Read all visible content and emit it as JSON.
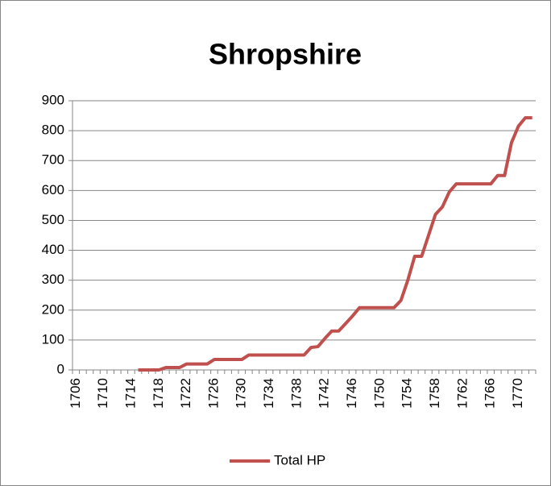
{
  "chart_data": {
    "type": "line",
    "title": "Shropshire",
    "categories": [
      "1706",
      null,
      null,
      null,
      "1710",
      null,
      null,
      null,
      "1714",
      null,
      null,
      null,
      "1718",
      null,
      null,
      null,
      "1722",
      null,
      null,
      null,
      "1726",
      null,
      null,
      null,
      "1730",
      null,
      null,
      null,
      "1734",
      null,
      null,
      null,
      "1738",
      null,
      null,
      null,
      "1742",
      null,
      null,
      null,
      "1746",
      null,
      null,
      null,
      "1750",
      null,
      null,
      null,
      "1754",
      null,
      null,
      null,
      "1758",
      null,
      null,
      null,
      "1762",
      null,
      null,
      null,
      "1766",
      null,
      null,
      null,
      "1770",
      null,
      null
    ],
    "series": [
      {
        "name": "Total HP",
        "color": "#c0504d",
        "values": [
          null,
          null,
          null,
          null,
          null,
          null,
          null,
          null,
          null,
          0,
          0,
          0,
          0,
          8,
          8,
          8,
          20,
          20,
          20,
          20,
          35,
          35,
          35,
          35,
          35,
          50,
          50,
          50,
          50,
          50,
          50,
          50,
          50,
          50,
          75,
          78,
          105,
          130,
          130,
          155,
          180,
          208,
          208,
          208,
          208,
          208,
          208,
          232,
          300,
          380,
          380,
          450,
          520,
          545,
          595,
          622,
          622,
          622,
          622,
          622,
          622,
          650,
          650,
          760,
          815,
          843,
          843
        ]
      }
    ],
    "ylim": [
      0,
      900
    ],
    "yticks": [
      0,
      100,
      200,
      300,
      400,
      500,
      600,
      700,
      800,
      900
    ],
    "grid": true,
    "legend": "bottom"
  }
}
